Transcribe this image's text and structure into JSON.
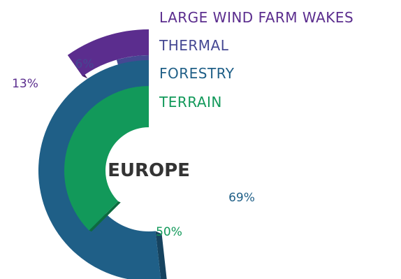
{
  "chart_data": {
    "type": "radial-bar",
    "center_label": "EUROPE",
    "series": [
      {
        "name": "LARGE WIND FARM WAKES",
        "value": 13,
        "label": "13%",
        "color": "#5b2d8e"
      },
      {
        "name": "THERMAL",
        "value": 6,
        "label": "6%",
        "color": "#454893"
      },
      {
        "name": "FORESTRY",
        "value": 69,
        "label": "69%",
        "color": "#1f5f87"
      },
      {
        "name": "TERRAIN",
        "value": 50,
        "label": "50%",
        "color": "#12995a"
      }
    ]
  }
}
